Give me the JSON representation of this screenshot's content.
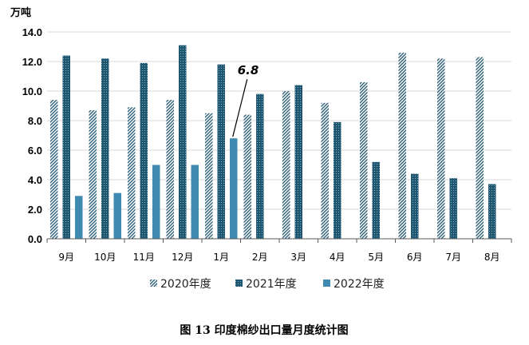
{
  "chart_data": {
    "type": "bar",
    "unit_label": "万吨",
    "caption": "图 13   印度棉纱出口量月度统计图",
    "categories": [
      "9月",
      "10月",
      "11月",
      "12月",
      "1月",
      "2月",
      "3月",
      "4月",
      "5月",
      "6月",
      "7月",
      "8月"
    ],
    "series": [
      {
        "name": "2020年度",
        "color": "#2e5f78",
        "pattern": "diagonal-stripes",
        "values": [
          9.4,
          8.7,
          8.9,
          9.4,
          8.5,
          8.4,
          10.0,
          9.2,
          10.6,
          12.6,
          12.2,
          12.3
        ]
      },
      {
        "name": "2021年度",
        "color": "#1f5670",
        "pattern": "dotted-dark",
        "values": [
          12.4,
          12.2,
          11.9,
          13.1,
          11.8,
          9.8,
          10.4,
          7.9,
          5.2,
          4.4,
          4.1,
          3.7
        ]
      },
      {
        "name": "2022年度",
        "color": "#3f8ab1",
        "pattern": "solid",
        "values": [
          2.9,
          3.1,
          5.0,
          5.0,
          6.8,
          null,
          null,
          null,
          null,
          null,
          null,
          null
        ]
      }
    ],
    "yticks": [
      "0.0",
      "2.0",
      "4.0",
      "6.0",
      "8.0",
      "10.0",
      "12.0",
      "14.0"
    ],
    "ylim": [
      0,
      14
    ],
    "grid": true,
    "legend_position": "bottom",
    "annotation": {
      "text": "6.8",
      "series": "2022年度",
      "category": "1月"
    }
  }
}
